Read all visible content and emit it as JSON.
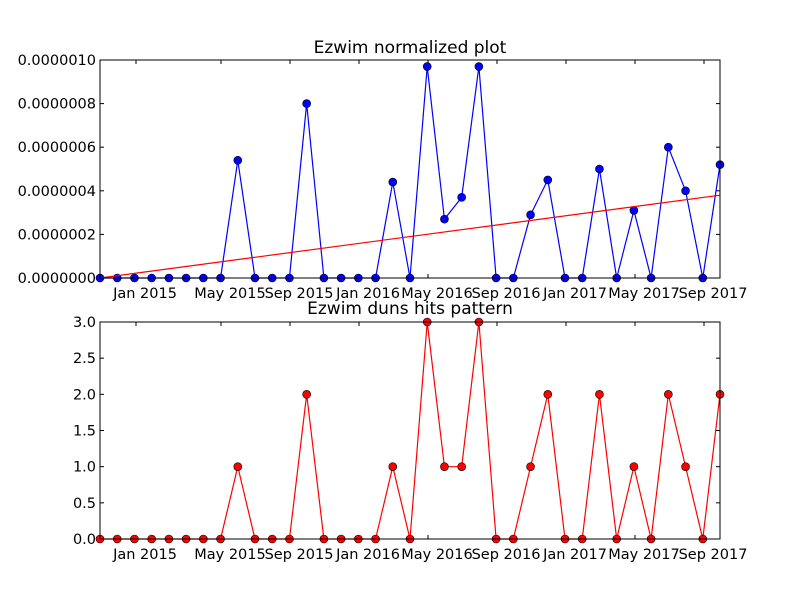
{
  "chart_data": [
    {
      "type": "line",
      "title": "Ezwim normalized plot",
      "xlabel": "",
      "ylabel": "",
      "x_ticks": [
        "Jan 2015",
        "May 2015",
        "Sep 2015",
        "Jan 2016",
        "May 2016",
        "Sep 2016",
        "Jan 2017",
        "May 2017",
        "Sep 2017"
      ],
      "y_ticks": [
        "0.0000000",
        "0.0000002",
        "0.0000004",
        "0.0000006",
        "0.0000008",
        "0.0000010"
      ],
      "ylim": [
        0,
        1e-06
      ],
      "series": [
        {
          "color": "#0000ff",
          "marker": "circle",
          "values": [
            0,
            0,
            0,
            0,
            0,
            0,
            0,
            0,
            5.4e-07,
            0,
            0,
            0,
            8e-07,
            0,
            0,
            0,
            0,
            4.4e-07,
            0,
            9.7e-07,
            2.7e-07,
            3.7e-07,
            9.7e-07,
            0,
            0,
            2.9e-07,
            4.5e-07,
            0,
            0,
            5e-07,
            0,
            3.1e-07,
            0,
            6e-07,
            4e-07,
            0,
            5.2e-07
          ]
        },
        {
          "color": "#ff0000",
          "marker": "none",
          "values": [
            0,
            3.8e-07
          ]
        }
      ]
    },
    {
      "type": "line",
      "title": "Ezwim duns hits pattern",
      "xlabel": "",
      "ylabel": "",
      "x_ticks": [
        "Jan 2015",
        "May 2015",
        "Sep 2015",
        "Jan 2016",
        "May 2016",
        "Sep 2016",
        "Jan 2017",
        "May 2017",
        "Sep 2017"
      ],
      "y_ticks": [
        "0.0",
        "0.5",
        "1.0",
        "1.5",
        "2.0",
        "2.5",
        "3.0"
      ],
      "ylim": [
        0,
        3
      ],
      "series": [
        {
          "color": "#ff0000",
          "marker": "circle",
          "values": [
            0,
            0,
            0,
            0,
            0,
            0,
            0,
            0,
            1,
            0,
            0,
            0,
            2,
            0,
            0,
            0,
            0,
            1,
            0,
            3,
            1,
            1,
            3,
            0,
            0,
            1,
            2,
            0,
            0,
            2,
            0,
            1,
            0,
            2,
            1,
            0,
            2
          ]
        }
      ]
    }
  ]
}
